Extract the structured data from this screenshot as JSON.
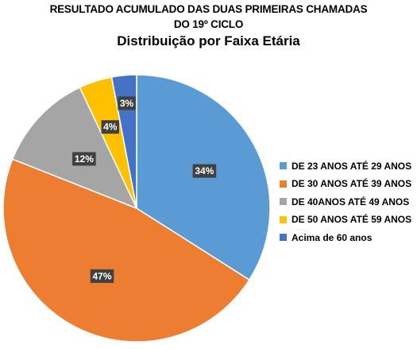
{
  "chart_data": {
    "type": "pie",
    "title_lines": [
      "RESULTADO ACUMULADO DAS DUAS PRIMEIRAS CHAMADAS",
      "DO 19º CICLO"
    ],
    "subtitle": "Distribuição por Faixa Etária",
    "legend_position": "right",
    "start_angle_deg": 0,
    "direction": "clockwise",
    "slices": [
      {
        "label": "DE 23 ANOS ATÉ 29 ANOS",
        "value": 34,
        "display": "34%",
        "color": "#5B9BD5"
      },
      {
        "label": "DE 30 ANOS ATÉ 39 ANOS",
        "value": 47,
        "display": "47%",
        "color": "#ED7D31"
      },
      {
        "label": "DE 40ANOS ATÉ 49 ANOS",
        "value": 12,
        "display": "12%",
        "color": "#A5A5A5"
      },
      {
        "label": "DE 50 ANOS ATÉ 59 ANOS",
        "value": 4,
        "display": "4%",
        "color": "#FFC000"
      },
      {
        "label": "Acima de 60 anos",
        "value": 3,
        "display": "3%",
        "color": "#4472C4"
      }
    ]
  }
}
